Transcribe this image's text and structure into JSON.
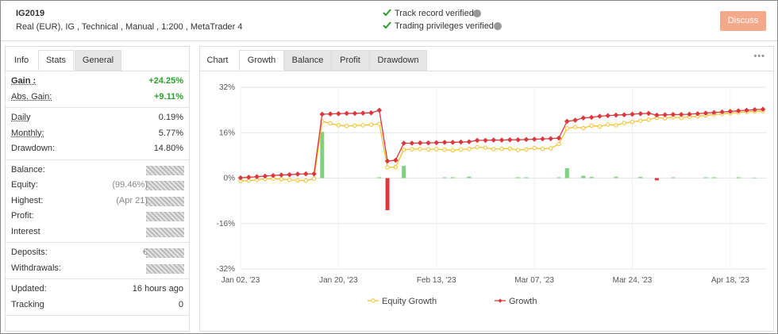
{
  "header": {
    "title": "IG2019",
    "info": "Real (EUR), IG , Technical , Manual , 1:200 , MetaTrader 4"
  },
  "verification": [
    "Track record verified",
    "Trading privileges verified"
  ],
  "discuss_button": "Discuss",
  "left_tabs": [
    "Info",
    "Stats",
    "General"
  ],
  "left_active_tab": 1,
  "stats": [
    [
      {
        "label": "Gain :",
        "value": "+24.25%",
        "highlight": true,
        "bold": true,
        "underline": true
      },
      {
        "label": "Abs. Gain:",
        "value": "+9.11%",
        "highlight": true,
        "underline": true
      }
    ],
    [
      {
        "label": "Daily",
        "value": "0.19%",
        "underline": true
      },
      {
        "label": "Monthly:",
        "value": "5.77%",
        "underline": true
      },
      {
        "label": "Drawdown:",
        "value": "14.80%"
      }
    ],
    [
      {
        "label": "Balance:"
      },
      {
        "label": "Equity:",
        "note": "(99.46%)"
      },
      {
        "label": "Highest:",
        "note": "(Apr 21)"
      },
      {
        "label": "Profit:"
      },
      {
        "label": "Interest"
      }
    ],
    [
      {
        "label": "Deposits:",
        "note": "€"
      },
      {
        "label": "Withdrawals:"
      }
    ],
    [
      {
        "label": "Updated:",
        "value": "16 hours ago"
      },
      {
        "label": "Tracking",
        "value": "0"
      }
    ]
  ],
  "right_tabs": [
    "Chart",
    "Growth",
    "Balance",
    "Profit",
    "Drawdown"
  ],
  "right_active_tab": 1,
  "chart_data": {
    "type": "line",
    "categories": [
      "Jan 02, '23",
      null,
      null,
      null,
      null,
      null,
      null,
      null,
      null,
      null,
      null,
      null,
      "Jan 20, '23",
      null,
      null,
      null,
      null,
      null,
      null,
      null,
      null,
      null,
      null,
      null,
      "Feb 13, '23",
      null,
      null,
      null,
      null,
      null,
      null,
      null,
      null,
      null,
      null,
      null,
      "Mar 07, '23",
      null,
      null,
      null,
      null,
      null,
      null,
      null,
      null,
      null,
      null,
      null,
      "Mar 24, '23",
      null,
      null,
      null,
      null,
      null,
      null,
      null,
      null,
      null,
      null,
      null,
      "Apr 18, '23",
      null,
      null,
      null,
      null
    ],
    "series": [
      {
        "name": "Equity Growth",
        "color": "#f2c12e",
        "kind": "line",
        "marker": "circle",
        "values": [
          -1.0,
          -0.9,
          -0.6,
          -0.3,
          -0.2,
          -0.4,
          -0.6,
          -0.8,
          -0.9,
          -0.2,
          20.0,
          19.3,
          18.6,
          18.4,
          18.5,
          18.6,
          18.8,
          19.1,
          3.8,
          3.9,
          10.0,
          10.2,
          10.3,
          10.1,
          10.2,
          10.0,
          9.8,
          10.1,
          10.3,
          10.9,
          10.7,
          10.2,
          10.3,
          10.4,
          9.9,
          10.1,
          10.6,
          10.3,
          10.5,
          12.0,
          17.5,
          18.0,
          17.6,
          18.5,
          18.2,
          18.9,
          18.6,
          19.4,
          19.8,
          20.2,
          20.6,
          21.3,
          21.1,
          21.5,
          21.2,
          21.6,
          21.8,
          22.1,
          22.4,
          22.6,
          22.9,
          23.1,
          23.3,
          23.5,
          23.6
        ]
      },
      {
        "name": "Growth",
        "color": "#d9393e",
        "kind": "line",
        "marker": "diamond",
        "values": [
          0.1,
          0.3,
          0.5,
          0.7,
          0.9,
          1.1,
          1.2,
          1.4,
          1.5,
          1.5,
          22.5,
          22.6,
          22.7,
          22.8,
          22.8,
          22.9,
          23.0,
          23.9,
          6.0,
          6.3,
          12.3,
          12.3,
          12.4,
          12.4,
          12.5,
          12.6,
          12.6,
          12.7,
          12.8,
          13.3,
          13.3,
          13.4,
          13.4,
          13.5,
          13.5,
          13.6,
          13.7,
          13.8,
          13.9,
          14.1,
          20.0,
          20.4,
          21.2,
          21.4,
          21.8,
          22.0,
          22.2,
          22.3,
          22.5,
          22.7,
          22.8,
          22.2,
          22.3,
          22.4,
          22.4,
          22.5,
          22.7,
          22.9,
          23.1,
          23.3,
          23.5,
          23.7,
          23.9,
          24.1,
          24.25
        ]
      },
      {
        "kind": "bar",
        "color": "#7fd07f",
        "negative_color": "#e0383e",
        "values": [
          null,
          null,
          null,
          null,
          null,
          null,
          null,
          null,
          null,
          null,
          16.3,
          null,
          null,
          null,
          null,
          null,
          null,
          0.3,
          -11.3,
          null,
          4.3,
          null,
          null,
          null,
          null,
          0.3,
          0.3,
          null,
          0.5,
          null,
          null,
          null,
          null,
          null,
          0.3,
          0.3,
          null,
          null,
          null,
          0.3,
          3.5,
          null,
          0.8,
          0.4,
          null,
          null,
          0.5,
          null,
          null,
          0.4,
          null,
          -0.8,
          null,
          0.3,
          null,
          null,
          null,
          0.3,
          0.3,
          null,
          null,
          0.3,
          null,
          0.2,
          null
        ]
      }
    ],
    "ylim": [
      -32,
      32
    ],
    "yticks": [
      {
        "value": 32,
        "label": "32%"
      },
      {
        "value": 16,
        "label": "16%"
      },
      {
        "value": 0,
        "label": "0%"
      },
      {
        "value": -16,
        "label": "-16%"
      },
      {
        "value": -32,
        "label": "-32%"
      }
    ],
    "grid": true,
    "legend": "bottom"
  }
}
